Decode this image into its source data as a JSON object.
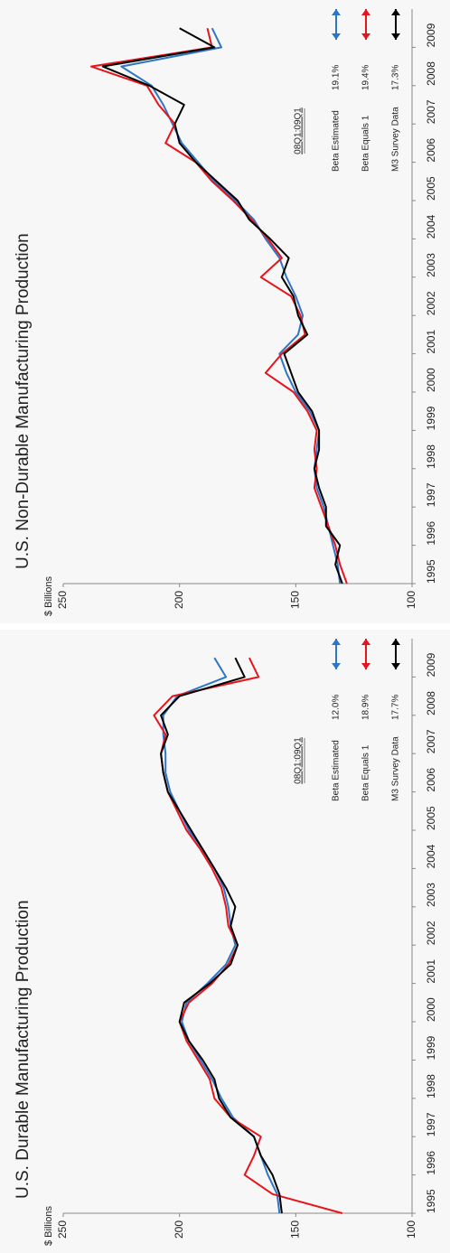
{
  "chart_data": [
    {
      "type": "line",
      "title": "U.S. Non-Durable Manufacturing Production",
      "y_label": "$ Billions",
      "legend_title": "08Q1:09Q1",
      "x": [
        1995,
        1995.5,
        1996,
        1996.5,
        1997,
        1997.5,
        1998,
        1998.5,
        1999,
        1999.5,
        2000,
        2000.5,
        2001,
        2001.5,
        2002,
        2002.5,
        2003,
        2003.5,
        2004,
        2004.5,
        2005,
        2005.5,
        2006,
        2006.5,
        2007,
        2007.5,
        2008,
        2008.5,
        2009,
        2009.5
      ],
      "xlim": [
        1995,
        2010
      ],
      "xticks": [
        1995,
        1996,
        1997,
        1998,
        1999,
        2000,
        2001,
        2002,
        2003,
        2004,
        2005,
        2006,
        2007,
        2008,
        2009
      ],
      "ylim": [
        100,
        250
      ],
      "yticks": [
        100,
        150,
        200,
        250
      ],
      "series": [
        {
          "name": "Beta Estimated",
          "stat": "19.1%",
          "color": "#2e75c6",
          "values": [
            131,
            132,
            134,
            136,
            138,
            141,
            142,
            141,
            140,
            144,
            150,
            154,
            157,
            149,
            147,
            150,
            154,
            157,
            163,
            168,
            176,
            185,
            192,
            199,
            203,
            207,
            212,
            225,
            182,
            186
          ]
        },
        {
          "name": "Beta Equals 1",
          "stat": "19.4%",
          "color": "#e8141c",
          "values": [
            128,
            131,
            133,
            136,
            139,
            142,
            141,
            142,
            141,
            145,
            151,
            163,
            156,
            146,
            148,
            152,
            165,
            156,
            162,
            169,
            177,
            186,
            193,
            206,
            202,
            209,
            214,
            238,
            186,
            188
          ]
        },
        {
          "name": "M3 Survey Data",
          "stat": "17.3%",
          "color": "#000000",
          "values": [
            130,
            133,
            131,
            137,
            137,
            140,
            142,
            140,
            140,
            143,
            149,
            152,
            155,
            145,
            149,
            151,
            156,
            153,
            161,
            170,
            175,
            184,
            193,
            200,
            202,
            198,
            213,
            233,
            185,
            200
          ]
        }
      ]
    },
    {
      "type": "line",
      "title": "U.S. Durable Manufacturing Production",
      "y_label": "$ Billions",
      "legend_title": "08Q1:09Q1",
      "x": [
        1995,
        1995.5,
        1996,
        1996.5,
        1997,
        1997.5,
        1998,
        1998.5,
        1999,
        1999.5,
        2000,
        2000.5,
        2001,
        2001.5,
        2002,
        2002.5,
        2003,
        2003.5,
        2004,
        2004.5,
        2005,
        2005.5,
        2006,
        2006.5,
        2007,
        2007.5,
        2008,
        2008.5,
        2009,
        2009.5
      ],
      "xlim": [
        1995,
        2010
      ],
      "xticks": [
        1995,
        1996,
        1997,
        1998,
        1999,
        2000,
        2001,
        2002,
        2003,
        2004,
        2005,
        2006,
        2007,
        2008,
        2009
      ],
      "ylim": [
        100,
        250
      ],
      "yticks": [
        100,
        150,
        200,
        250
      ],
      "series": [
        {
          "name": "Beta Estimated",
          "stat": "12.0%",
          "color": "#2e75c6",
          "values": [
            157,
            158,
            162,
            165,
            168,
            177,
            182,
            186,
            191,
            196,
            199,
            197,
            188,
            180,
            176,
            178,
            179,
            181,
            185,
            190,
            196,
            200,
            204,
            206,
            206,
            207,
            207,
            201,
            180,
            185
          ]
        },
        {
          "name": "Beta Equals 1",
          "stat": "18.9%",
          "color": "#e8141c",
          "values": [
            130,
            160,
            172,
            168,
            165,
            178,
            185,
            187,
            192,
            197,
            200,
            196,
            186,
            179,
            175,
            179,
            180,
            182,
            186,
            191,
            197,
            201,
            205,
            207,
            208,
            206,
            211,
            203,
            166,
            170
          ]
        },
        {
          "name": "M3 Survey Data",
          "stat": "17.7%",
          "color": "#000000",
          "values": [
            156,
            157,
            160,
            165,
            168,
            178,
            183,
            185,
            190,
            196,
            200,
            198,
            187,
            178,
            175,
            178,
            176,
            180,
            185,
            190,
            195,
            200,
            205,
            207,
            208,
            205,
            208,
            200,
            172,
            176
          ]
        }
      ]
    }
  ]
}
